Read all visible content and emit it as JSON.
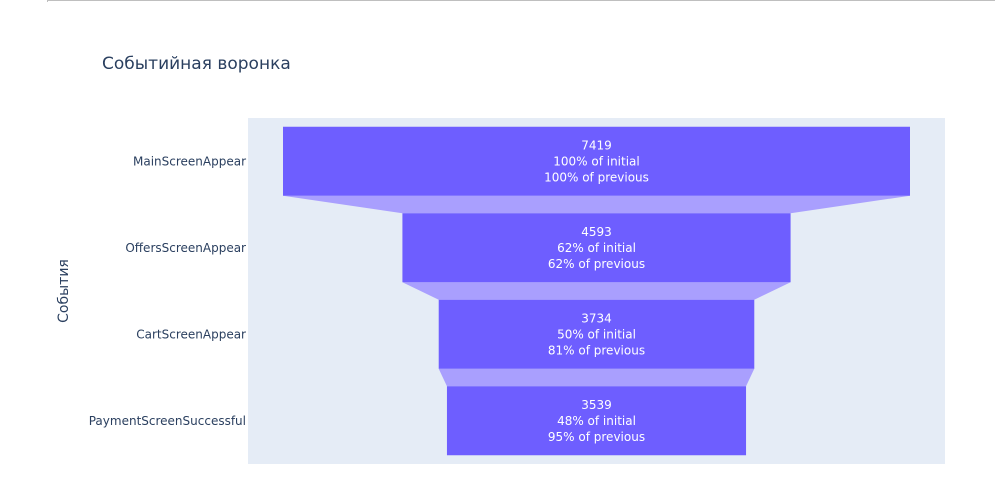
{
  "chart_data": {
    "type": "funnel",
    "title": "Событийная воронка",
    "ylabel": "События",
    "categories": [
      "MainScreenAppear",
      "OffersScreenAppear",
      "CartScreenAppear",
      "PaymentScreenSuccessful"
    ],
    "values": [
      7419,
      4593,
      3734,
      3539
    ],
    "pct_initial_labels": [
      "100% of initial",
      "62% of initial",
      "50% of initial",
      "48% of initial"
    ],
    "pct_previous_labels": [
      "100% of previous",
      "62% of previous",
      "81% of previous",
      "95% of previous"
    ],
    "colors": {
      "bar": "#6e5eff",
      "connector": "#a99ffe",
      "plot_bg": "#e5ecf6",
      "text": "#2a3f5f"
    }
  }
}
